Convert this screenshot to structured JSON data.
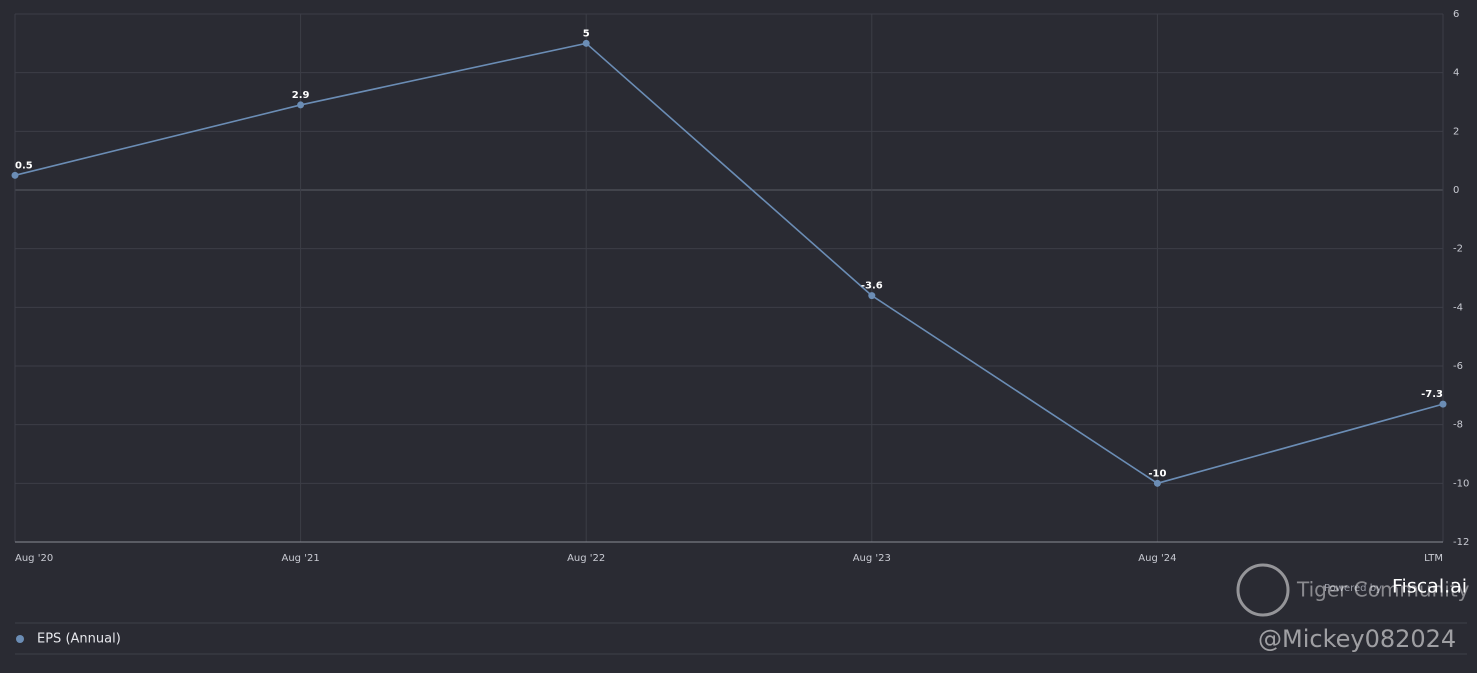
{
  "chart_data": {
    "type": "line",
    "categories": [
      "Aug '20",
      "Aug '21",
      "Aug '22",
      "Aug '23",
      "Aug '24",
      "LTM"
    ],
    "series": [
      {
        "name": "EPS (Annual)",
        "color": "#6b8db5",
        "values": [
          0.5,
          2.9,
          5,
          -3.6,
          -10,
          -7.3
        ]
      }
    ],
    "ylim": [
      -12,
      6
    ],
    "yticks": [
      -12,
      -10,
      -8,
      -6,
      -4,
      -2,
      0,
      2,
      4,
      6
    ],
    "grid": true,
    "data_labels": true,
    "credit": {
      "prefix": "Powered by",
      "brand": "Fiscal.ai"
    },
    "watermark": {
      "community": "Tiger Community",
      "user": "@Mickey082024"
    }
  }
}
